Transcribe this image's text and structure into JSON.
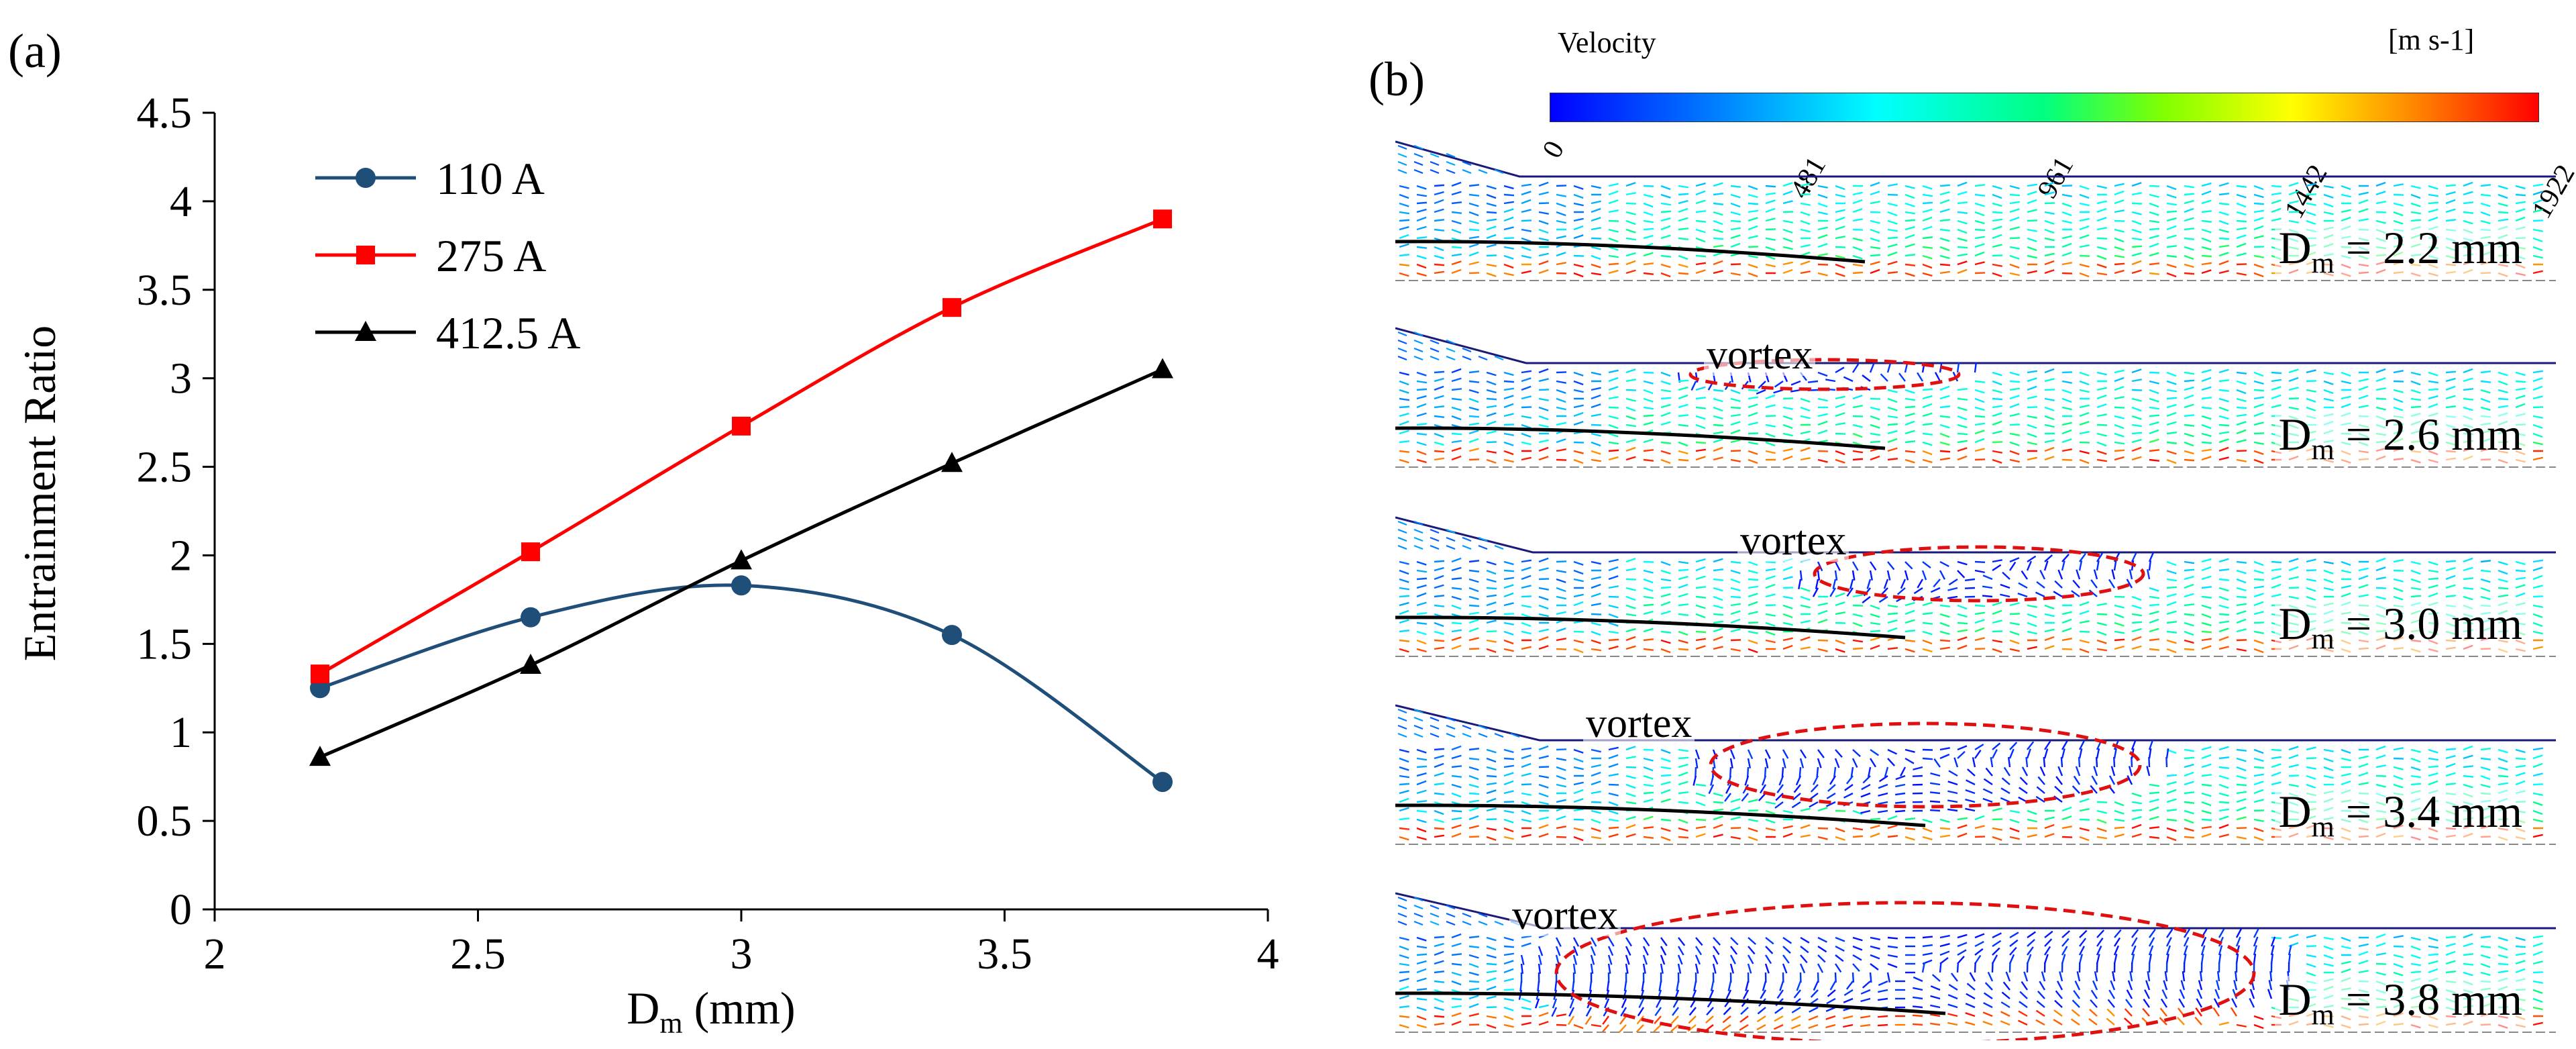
{
  "panel_a_label": "(a)",
  "panel_b_label": "(b)",
  "chart_data": {
    "type": "line",
    "xlabel_main": "D",
    "xlabel_sub": "m",
    "xlabel_unit": " (mm)",
    "ylabel": "Entrainment Ratio",
    "xlim": [
      2,
      4
    ],
    "ylim": [
      0,
      4.5
    ],
    "xticks": [
      "2",
      "2.5",
      "3",
      "3.5",
      "4"
    ],
    "yticks": [
      "0",
      "0.5",
      "1",
      "1.5",
      "2",
      "2.5",
      "3",
      "3.5",
      "4",
      "4.5"
    ],
    "x": [
      2.2,
      2.6,
      3.0,
      3.4,
      3.8
    ],
    "series": [
      {
        "name": "110 A",
        "color": "#1f4e79",
        "marker": "circle",
        "values": [
          1.25,
          1.65,
          1.83,
          1.55,
          0.72
        ]
      },
      {
        "name": "275 A",
        "color": "#ff0000",
        "marker": "square",
        "values": [
          1.33,
          2.02,
          2.73,
          3.4,
          3.9
        ]
      },
      {
        "name": "412.5 A",
        "color": "#000000",
        "marker": "triangle",
        "values": [
          0.86,
          1.38,
          1.97,
          2.52,
          3.05
        ]
      }
    ],
    "legend_position": "top-left"
  },
  "colorbar": {
    "title": "Velocity",
    "unit": "[m s-1]",
    "ticks": [
      "0",
      "481",
      "961",
      "1442",
      "1922"
    ]
  },
  "simulations": [
    {
      "dm_label_main": "D",
      "dm_label_sub": "m",
      "dm_label_value": " = 2.2 mm",
      "vortex_label": ""
    },
    {
      "dm_label_main": "D",
      "dm_label_sub": "m",
      "dm_label_value": " = 2.6 mm",
      "vortex_label": "vortex"
    },
    {
      "dm_label_main": "D",
      "dm_label_sub": "m",
      "dm_label_value": " = 3.0 mm",
      "vortex_label": "vortex"
    },
    {
      "dm_label_main": "D",
      "dm_label_sub": "m",
      "dm_label_value": " = 3.4 mm",
      "vortex_label": "vortex"
    },
    {
      "dm_label_main": "D",
      "dm_label_sub": "m",
      "dm_label_value": " = 3.8 mm",
      "vortex_label": "vortex"
    }
  ]
}
